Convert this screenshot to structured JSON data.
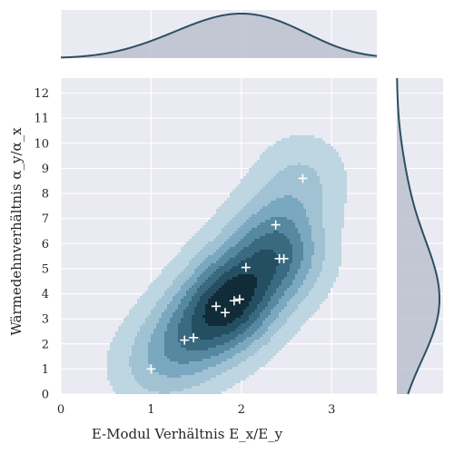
{
  "chart_data": {
    "type": "scatter",
    "subtype": "joint-kde",
    "xlabel": "E-Modul Verhältnis E_x/E_y",
    "ylabel": "Wärmedehnverhältnis α_y/α_x",
    "xlim": [
      0,
      3.5
    ],
    "ylim": [
      0,
      12.6
    ],
    "xticks": [
      0,
      1,
      2,
      3
    ],
    "yticks": [
      0,
      1,
      2,
      3,
      4,
      5,
      6,
      7,
      8,
      9,
      10,
      11,
      12
    ],
    "grid": true,
    "marker": "+",
    "points": [
      {
        "x": 1.0,
        "y": 1.0
      },
      {
        "x": 1.37,
        "y": 2.15
      },
      {
        "x": 1.47,
        "y": 2.25
      },
      {
        "x": 1.72,
        "y": 3.5
      },
      {
        "x": 1.82,
        "y": 3.25
      },
      {
        "x": 1.92,
        "y": 3.72
      },
      {
        "x": 1.98,
        "y": 3.78
      },
      {
        "x": 2.05,
        "y": 5.05
      },
      {
        "x": 2.38,
        "y": 6.75
      },
      {
        "x": 2.42,
        "y": 5.4
      },
      {
        "x": 2.47,
        "y": 5.4
      },
      {
        "x": 2.68,
        "y": 8.6
      }
    ],
    "colors": {
      "background": "#eaeaf2",
      "grid": "#ffffff",
      "marginal_line": "#2c4f63",
      "marginal_fill": "#bcc1cf",
      "levels": [
        "#bed6e1",
        "#a1c2d3",
        "#7aa8c1",
        "#56889f",
        "#3a6a80",
        "#244e61",
        "#112c38"
      ],
      "marker": "#ffffff",
      "text": "#262626"
    }
  }
}
